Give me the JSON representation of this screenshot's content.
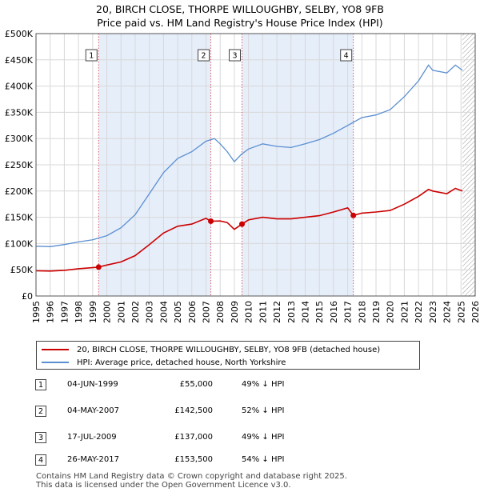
{
  "title_line1": "20, BIRCH CLOSE, THORPE WILLOUGHBY, SELBY, YO8 9FB",
  "title_line2": "Price paid vs. HM Land Registry's House Price Index (HPI)",
  "colors": {
    "property": "#cc0000",
    "hpi": "#5b8fd1",
    "shade": "#e6eefa",
    "vline": "#e06060",
    "grid": "#d8d8d8"
  },
  "chart_data": {
    "type": "line",
    "xlim": [
      1995,
      2026
    ],
    "ylim": [
      0,
      500000
    ],
    "y_ticks": [
      {
        "value": 0,
        "label": "£0"
      },
      {
        "value": 50000,
        "label": "£50K"
      },
      {
        "value": 100000,
        "label": "£100K"
      },
      {
        "value": 150000,
        "label": "£150K"
      },
      {
        "value": 200000,
        "label": "£200K"
      },
      {
        "value": 250000,
        "label": "£250K"
      },
      {
        "value": 300000,
        "label": "£300K"
      },
      {
        "value": 350000,
        "label": "£350K"
      },
      {
        "value": 400000,
        "label": "£400K"
      },
      {
        "value": 450000,
        "label": "£450K"
      },
      {
        "value": 500000,
        "label": "£500K"
      }
    ],
    "x_ticks": [
      "1995",
      "1996",
      "1997",
      "1998",
      "1999",
      "2000",
      "2001",
      "2002",
      "2003",
      "2004",
      "2005",
      "2006",
      "2007",
      "2008",
      "2009",
      "2010",
      "2011",
      "2012",
      "2013",
      "2014",
      "2015",
      "2016",
      "2017",
      "2018",
      "2019",
      "2020",
      "2021",
      "2022",
      "2023",
      "2024",
      "2025",
      "2026"
    ],
    "grid": true,
    "future_hatch_from": 2025.1,
    "series": [
      {
        "name": "20, BIRCH CLOSE, THORPE WILLOUGHBY, SELBY, YO8 9FB (detached house)",
        "key": "property",
        "points": [
          [
            1995.0,
            48000
          ],
          [
            1996.0,
            47500
          ],
          [
            1997.0,
            49000
          ],
          [
            1998.0,
            52000
          ],
          [
            1999.42,
            55000
          ],
          [
            2000.0,
            59000
          ],
          [
            2001.0,
            65000
          ],
          [
            2002.0,
            77000
          ],
          [
            2003.0,
            98000
          ],
          [
            2004.0,
            120000
          ],
          [
            2005.0,
            133000
          ],
          [
            2006.0,
            137000
          ],
          [
            2007.0,
            148000
          ],
          [
            2007.34,
            142500
          ],
          [
            2008.0,
            143000
          ],
          [
            2008.5,
            140000
          ],
          [
            2009.0,
            127000
          ],
          [
            2009.54,
            137000
          ],
          [
            2010.0,
            145000
          ],
          [
            2011.0,
            150000
          ],
          [
            2012.0,
            147000
          ],
          [
            2013.0,
            147000
          ],
          [
            2014.0,
            150000
          ],
          [
            2015.0,
            153000
          ],
          [
            2016.0,
            160000
          ],
          [
            2017.0,
            168000
          ],
          [
            2017.4,
            153500
          ],
          [
            2018.0,
            158000
          ],
          [
            2019.0,
            160000
          ],
          [
            2020.0,
            163000
          ],
          [
            2021.0,
            175000
          ],
          [
            2022.0,
            190000
          ],
          [
            2022.7,
            203000
          ],
          [
            2023.0,
            200000
          ],
          [
            2024.0,
            195000
          ],
          [
            2024.6,
            205000
          ],
          [
            2025.1,
            200000
          ]
        ]
      },
      {
        "name": "HPI: Average price, detached house, North Yorkshire",
        "key": "hpi",
        "points": [
          [
            1995.0,
            95000
          ],
          [
            1996.0,
            94000
          ],
          [
            1997.0,
            98000
          ],
          [
            1998.0,
            103000
          ],
          [
            1999.0,
            107000
          ],
          [
            2000.0,
            115000
          ],
          [
            2001.0,
            130000
          ],
          [
            2002.0,
            155000
          ],
          [
            2003.0,
            195000
          ],
          [
            2004.0,
            235000
          ],
          [
            2005.0,
            262000
          ],
          [
            2006.0,
            275000
          ],
          [
            2007.0,
            295000
          ],
          [
            2007.6,
            300000
          ],
          [
            2008.0,
            290000
          ],
          [
            2008.5,
            275000
          ],
          [
            2009.0,
            256000
          ],
          [
            2009.5,
            270000
          ],
          [
            2010.0,
            280000
          ],
          [
            2011.0,
            290000
          ],
          [
            2012.0,
            285000
          ],
          [
            2013.0,
            283000
          ],
          [
            2014.0,
            290000
          ],
          [
            2015.0,
            298000
          ],
          [
            2016.0,
            310000
          ],
          [
            2017.0,
            325000
          ],
          [
            2018.0,
            340000
          ],
          [
            2019.0,
            345000
          ],
          [
            2020.0,
            355000
          ],
          [
            2021.0,
            380000
          ],
          [
            2022.0,
            410000
          ],
          [
            2022.7,
            440000
          ],
          [
            2023.0,
            430000
          ],
          [
            2024.0,
            425000
          ],
          [
            2024.6,
            440000
          ],
          [
            2025.1,
            430000
          ]
        ]
      }
    ],
    "sales": [
      {
        "id": "1",
        "x": 1999.42,
        "y": 55000
      },
      {
        "id": "2",
        "x": 2007.34,
        "y": 142500
      },
      {
        "id": "3",
        "x": 2009.54,
        "y": 137000
      },
      {
        "id": "4",
        "x": 2017.4,
        "y": 153500
      }
    ],
    "shaded_spans": [
      [
        1999.42,
        2007.34
      ],
      [
        2009.54,
        2017.4
      ]
    ]
  },
  "legend": {
    "property_label": "20, BIRCH CLOSE, THORPE WILLOUGHBY, SELBY, YO8 9FB (detached house)",
    "hpi_label": "HPI: Average price, detached house, North Yorkshire"
  },
  "sales_table": [
    {
      "id": "1",
      "date": "04-JUN-1999",
      "price": "£55,000",
      "hpi": "49% ↓ HPI"
    },
    {
      "id": "2",
      "date": "04-MAY-2007",
      "price": "£142,500",
      "hpi": "52% ↓ HPI"
    },
    {
      "id": "3",
      "date": "17-JUL-2009",
      "price": "£137,000",
      "hpi": "49% ↓ HPI"
    },
    {
      "id": "4",
      "date": "26-MAY-2017",
      "price": "£153,500",
      "hpi": "54% ↓ HPI"
    }
  ],
  "footer_line1": "Contains HM Land Registry data © Crown copyright and database right 2025.",
  "footer_line2": "This data is licensed under the Open Government Licence v3.0."
}
